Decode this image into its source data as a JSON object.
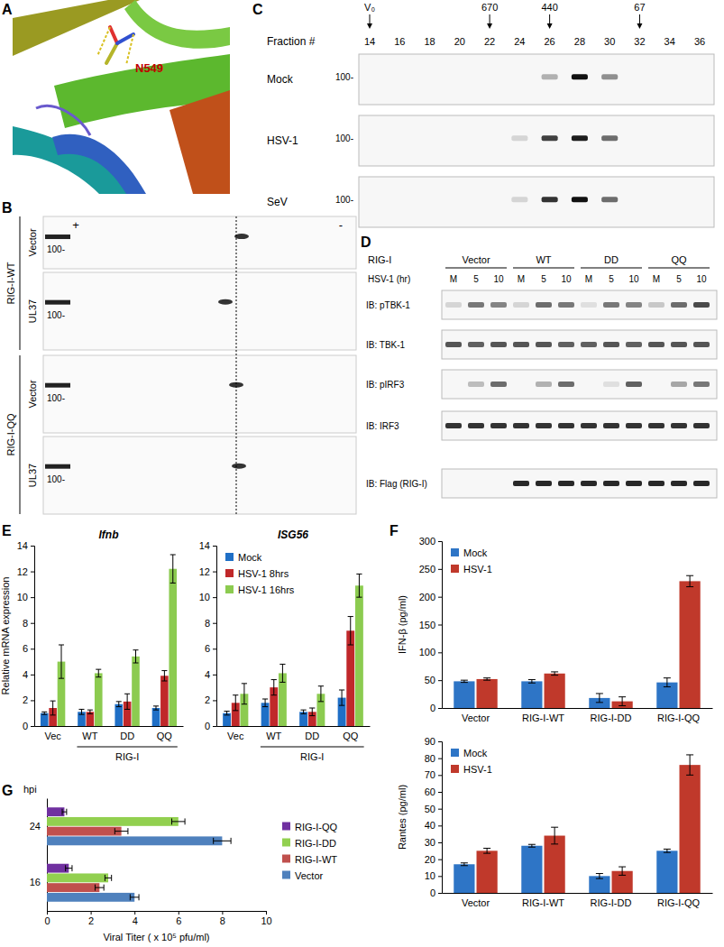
{
  "panel_letters": [
    "A",
    "B",
    "C",
    "D",
    "E",
    "F",
    "G"
  ],
  "panels": {
    "A": {
      "residue": "N549"
    },
    "B": {
      "charge_ends": [
        "+",
        "-"
      ],
      "constructs": [
        "RIG-I-WT",
        "RIG-I-QQ"
      ],
      "conditions": [
        "Vector",
        "UL37"
      ],
      "size_marker": "100-"
    },
    "C": {
      "standards": [
        {
          "label": "V₀",
          "fraction": 14
        },
        {
          "label": "670",
          "fraction": 22
        },
        {
          "label": "440",
          "fraction": 26
        },
        {
          "label": "67",
          "fraction": 32
        }
      ],
      "fraction_title": "Fraction #",
      "fractions": [
        14,
        16,
        18,
        20,
        22,
        24,
        26,
        28,
        30,
        32,
        34,
        36
      ],
      "rows": [
        "Mock",
        "HSV-1",
        "SeV"
      ],
      "size_marker": "100-",
      "band_intensity": [
        [
          0,
          0,
          0,
          0,
          0,
          0,
          0.3,
          1.0,
          0.45,
          0,
          0,
          0
        ],
        [
          0,
          0,
          0,
          0,
          0,
          0.15,
          0.8,
          0.95,
          0.6,
          0,
          0,
          0
        ],
        [
          0,
          0,
          0,
          0,
          0,
          0.15,
          0.85,
          1.0,
          0.6,
          0,
          0,
          0
        ]
      ]
    },
    "D": {
      "construct_title": "RIG-I",
      "constructs": [
        "Vector",
        "WT",
        "DD",
        "QQ"
      ],
      "time_title": "HSV-1 (hr)",
      "times": [
        "M",
        "5",
        "10"
      ],
      "rows": [
        "IB: pTBK-1",
        "IB: TBK-1",
        "IB: pIRF3",
        "IB: IRF3",
        "IB: Flag (RIG-I)"
      ],
      "band_intensity": [
        [
          0.15,
          0.55,
          0.5,
          0.15,
          0.6,
          0.55,
          0.1,
          0.55,
          0.5,
          0.2,
          0.6,
          0.75
        ],
        [
          0.7,
          0.65,
          0.7,
          0.7,
          0.7,
          0.65,
          0.65,
          0.7,
          0.65,
          0.7,
          0.7,
          0.7
        ],
        [
          0,
          0.25,
          0.6,
          0,
          0.3,
          0.6,
          0,
          0.1,
          0.65,
          0,
          0.35,
          0.55
        ],
        [
          0.85,
          0.85,
          0.85,
          0.85,
          0.85,
          0.85,
          0.85,
          0.85,
          0.85,
          0.85,
          0.85,
          0.85
        ],
        [
          0,
          0,
          0,
          0.9,
          0.9,
          0.9,
          0.9,
          0.9,
          0.9,
          0.9,
          0.9,
          0.9
        ]
      ]
    }
  },
  "chart_data": [
    {
      "type": "bar",
      "title": "Ifnb",
      "ylabel": "Relative mRNA expression",
      "categories": [
        "Vec",
        "WT",
        "DD",
        "QQ"
      ],
      "annotations": [
        "RIG-I"
      ],
      "ylim": [
        0,
        14
      ],
      "yticks": [
        0,
        2,
        4,
        6,
        8,
        10,
        12,
        14
      ],
      "series": [
        {
          "color": "#1F6FC6",
          "values": [
            1.0,
            1.1,
            1.7,
            1.4
          ],
          "errors": [
            0.1,
            0.2,
            0.2,
            0.15
          ]
        },
        {
          "color": "#C0282A",
          "values": [
            1.4,
            1.1,
            1.9,
            3.9
          ],
          "errors": [
            0.55,
            0.15,
            0.6,
            0.4
          ]
        },
        {
          "color": "#8CCB50",
          "values": [
            5.0,
            4.1,
            5.4,
            12.2
          ],
          "errors": [
            1.3,
            0.3,
            0.5,
            1.1
          ]
        }
      ]
    },
    {
      "type": "bar",
      "title": "ISG56",
      "categories": [
        "Vec",
        "WT",
        "DD",
        "QQ"
      ],
      "annotations": [
        "RIG-I"
      ],
      "ylim": [
        0,
        14
      ],
      "yticks": [
        0,
        2,
        4,
        6,
        8,
        10,
        12,
        14
      ],
      "legend": "top-left",
      "series": [
        {
          "name": "Mock",
          "color": "#1F6FC6",
          "values": [
            1.0,
            1.8,
            1.1,
            2.2
          ],
          "errors": [
            0.15,
            0.3,
            0.15,
            0.6
          ]
        },
        {
          "name": "HSV-1 8hrs",
          "color": "#C0282A",
          "values": [
            1.8,
            3.0,
            1.1,
            7.4
          ],
          "errors": [
            0.6,
            0.6,
            0.3,
            1.1
          ]
        },
        {
          "name": "HSV-1 16hrs",
          "color": "#8CCB50",
          "values": [
            2.5,
            4.1,
            2.5,
            10.9
          ],
          "errors": [
            0.8,
            0.7,
            0.6,
            0.9
          ]
        }
      ]
    },
    {
      "type": "bar",
      "ylabel": "IFN-β (pg/ml)",
      "categories": [
        "Vector",
        "RIG-I-WT",
        "RIG-I-DD",
        "RIG-I-QQ"
      ],
      "ylim": [
        0,
        300
      ],
      "yticks": [
        0,
        50,
        100,
        150,
        200,
        250,
        300
      ],
      "legend": "top-left",
      "series": [
        {
          "name": "Mock",
          "color": "#2E75C6",
          "values": [
            48,
            48,
            18,
            46
          ],
          "errors": [
            2,
            3,
            8,
            8
          ]
        },
        {
          "name": "HSV-1",
          "color": "#C0392B",
          "values": [
            52,
            62,
            12,
            228
          ],
          "errors": [
            2,
            3,
            8,
            10
          ]
        }
      ]
    },
    {
      "type": "bar",
      "ylabel": "Rantes (pg/ml)",
      "categories": [
        "Vector",
        "RIG-I-WT",
        "RIG-I-DD",
        "RIG-I-QQ"
      ],
      "ylim": [
        0,
        90
      ],
      "yticks": [
        0,
        10,
        20,
        30,
        40,
        50,
        60,
        70,
        80,
        90
      ],
      "legend": "top-left",
      "series": [
        {
          "name": "Mock",
          "color": "#2E75C6",
          "values": [
            17,
            28,
            10,
            25
          ],
          "errors": [
            0.8,
            0.8,
            1.5,
            1
          ]
        },
        {
          "name": "HSV-1",
          "color": "#C0392B",
          "values": [
            25,
            34,
            13,
            76
          ],
          "errors": [
            1.5,
            5,
            2.5,
            6
          ]
        }
      ]
    },
    {
      "type": "bar",
      "orientation": "horizontal",
      "ylabel": "hpi",
      "xlabel": "Viral Titer ( x 10⁵ pfu/ml)",
      "categories": [
        "24",
        "16"
      ],
      "xlim": [
        0,
        10
      ],
      "xticks": [
        0,
        2,
        4,
        6,
        8,
        10
      ],
      "legend": "right",
      "series": [
        {
          "name": "RIG-I-QQ",
          "color": "#7030A0",
          "values": [
            0.8,
            1.0
          ],
          "errors": [
            0.1,
            0.15
          ]
        },
        {
          "name": "RIG-I-DD",
          "color": "#92D050",
          "values": [
            6.0,
            2.8
          ],
          "errors": [
            0.3,
            0.15
          ]
        },
        {
          "name": "RIG-I-WT",
          "color": "#C0504D",
          "values": [
            3.4,
            2.4
          ],
          "errors": [
            0.3,
            0.2
          ]
        },
        {
          "name": "Vector",
          "color": "#4F81BD",
          "values": [
            8.0,
            4.0
          ],
          "errors": [
            0.4,
            0.2
          ]
        }
      ]
    }
  ]
}
